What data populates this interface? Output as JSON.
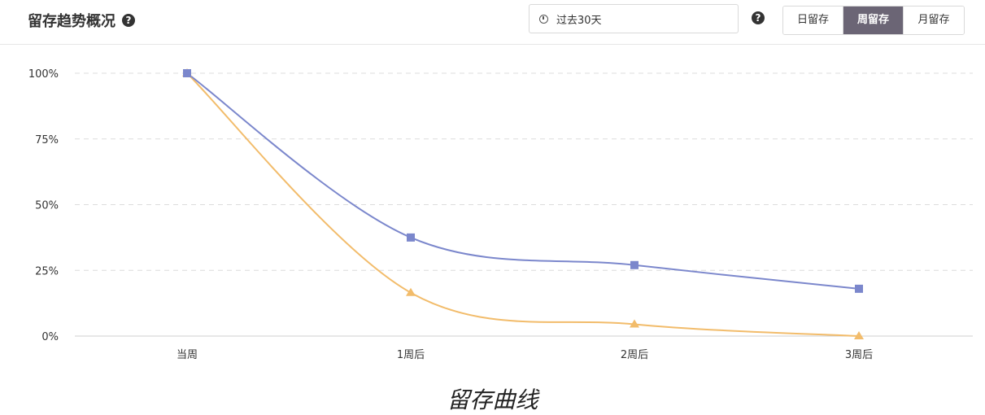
{
  "header": {
    "title": "留存趋势概况",
    "date_range": "过去30天",
    "tabs": [
      "日留存",
      "周留存",
      "月留存"
    ],
    "active_tab": "周留存"
  },
  "caption": "留存曲线",
  "colors": {
    "series_blue": "#7b87cc",
    "series_orange": "#f2bc6b",
    "active_tab_bg": "#6b6575"
  },
  "chart_data": {
    "type": "line",
    "categories": [
      "当周",
      "1周后",
      "2周后",
      "3周后"
    ],
    "y_ticks": [
      "0%",
      "25%",
      "50%",
      "75%",
      "100%"
    ],
    "ylim": [
      0,
      100
    ],
    "grid": true,
    "series": [
      {
        "color": "#7b87cc",
        "marker": "square",
        "values": [
          100,
          37.5,
          27,
          18
        ]
      },
      {
        "color": "#f2bc6b",
        "marker": "triangle",
        "values": [
          100,
          16.5,
          4.5,
          0
        ]
      }
    ]
  }
}
